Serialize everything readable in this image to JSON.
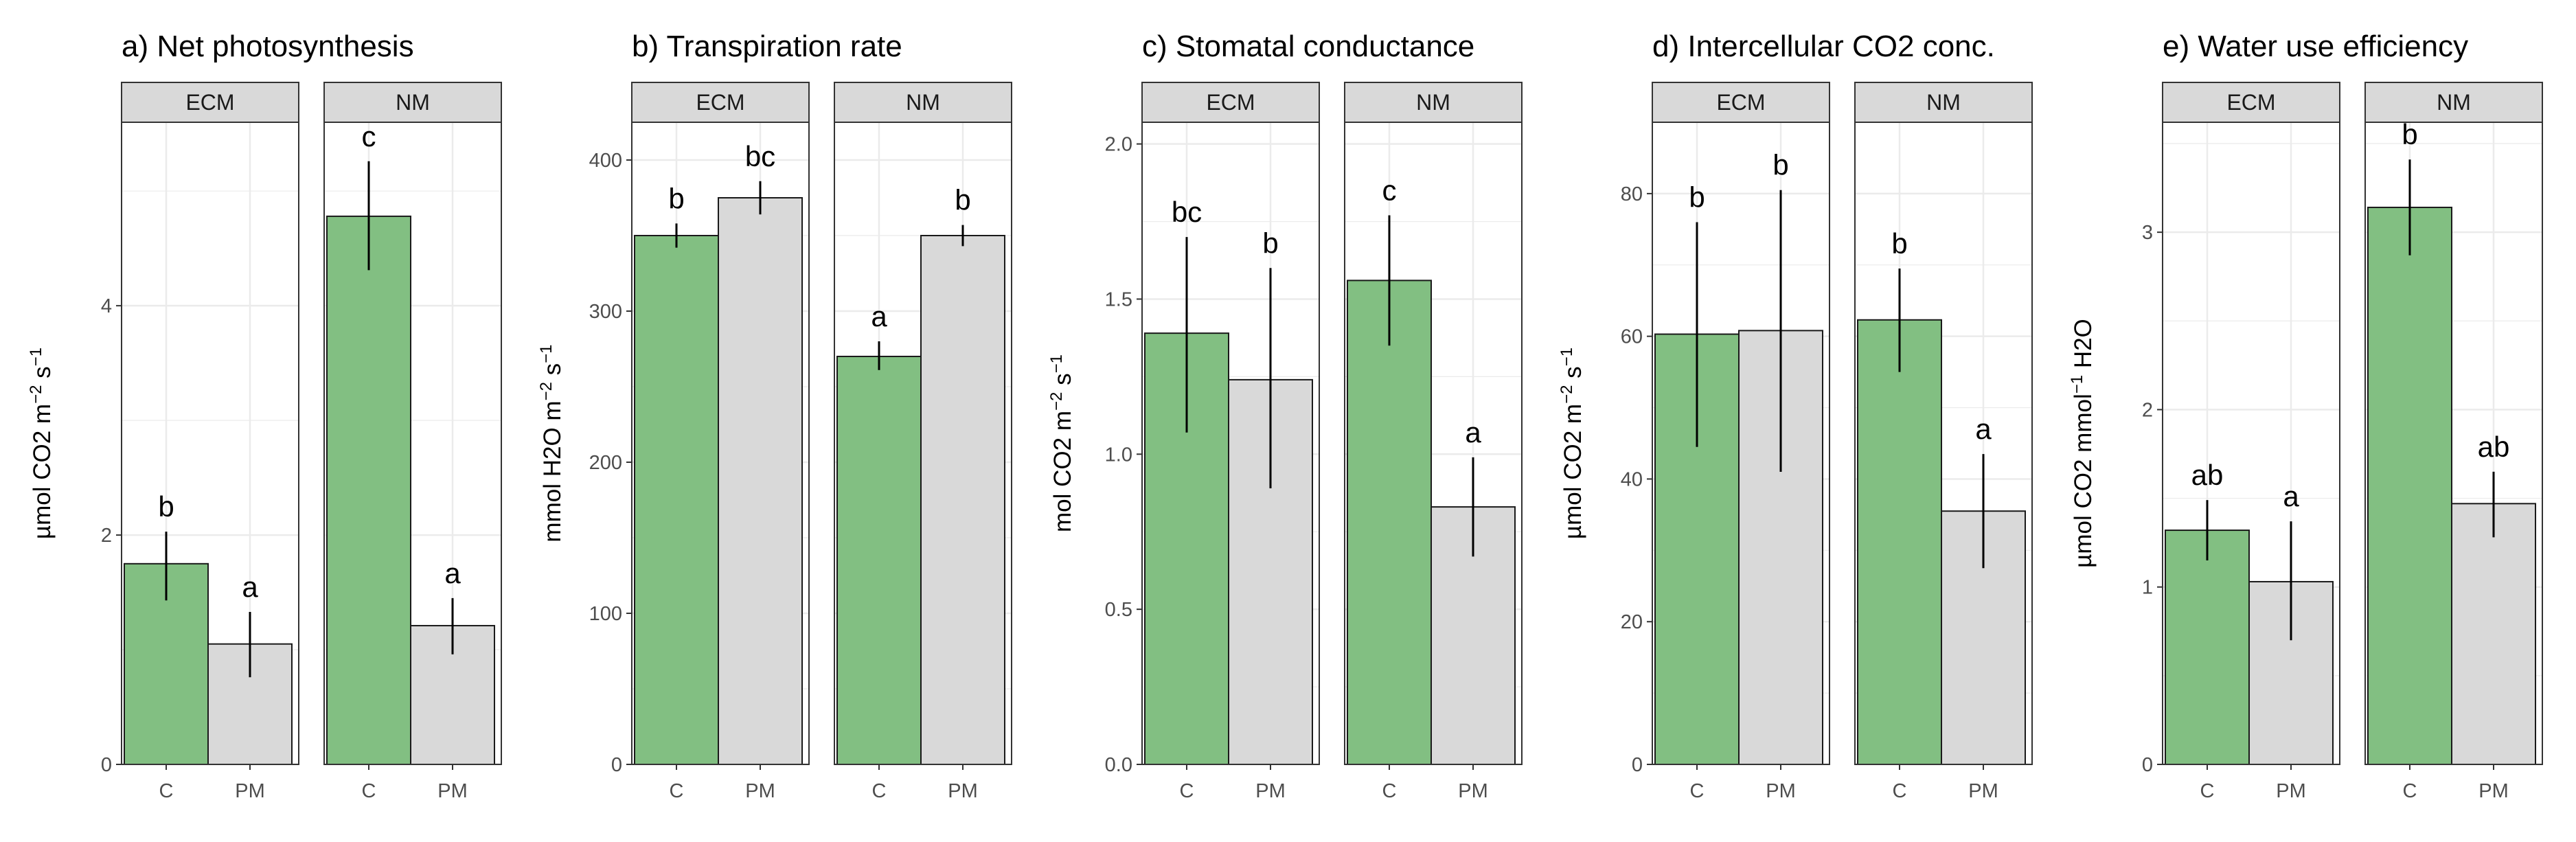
{
  "figure": {
    "facets": [
      "ECM",
      "NM"
    ],
    "treatments": [
      "C",
      "PM"
    ],
    "colors": {
      "C": "#82bf82",
      "PM": "#d9d9d9",
      "bar_outline": "#1a1a1a",
      "strip_fill": "#d9d9d9",
      "grid": "#ebebeb",
      "panel_border": "#333333"
    }
  },
  "chart_data": [
    {
      "type": "bar",
      "title": "a) Net photosynthesis",
      "ylabel": "µmol CO2 m^-2 s^-1",
      "ylabel_parts": [
        [
          "µmol CO2 m",
          false
        ],
        [
          "−2",
          true
        ],
        [
          " s",
          false
        ],
        [
          "−1",
          true
        ]
      ],
      "ylim": [
        0,
        5.6
      ],
      "yticks": [
        0,
        2,
        4
      ],
      "ytick_labels": [
        "0",
        "2",
        "4"
      ],
      "series": [
        {
          "facet": "ECM",
          "treatment": "C",
          "value": 1.75,
          "err_low": 1.43,
          "err_high": 2.03,
          "letter": "b"
        },
        {
          "facet": "ECM",
          "treatment": "PM",
          "value": 1.05,
          "err_low": 0.76,
          "err_high": 1.33,
          "letter": "a"
        },
        {
          "facet": "NM",
          "treatment": "C",
          "value": 4.78,
          "err_low": 4.31,
          "err_high": 5.26,
          "letter": "c"
        },
        {
          "facet": "NM",
          "treatment": "PM",
          "value": 1.21,
          "err_low": 0.96,
          "err_high": 1.45,
          "letter": "a"
        }
      ]
    },
    {
      "type": "bar",
      "title": "b) Transpiration rate",
      "ylabel": "mmol H2O m^-2 s^-1",
      "ylabel_parts": [
        [
          "mmol H2O m",
          false
        ],
        [
          "−2",
          true
        ],
        [
          " s",
          false
        ],
        [
          "−1",
          true
        ]
      ],
      "ylim": [
        0,
        425
      ],
      "yticks": [
        0,
        100,
        200,
        300,
        400
      ],
      "ytick_labels": [
        "0",
        "100",
        "200",
        "300",
        "400"
      ],
      "series": [
        {
          "facet": "ECM",
          "treatment": "C",
          "value": 350,
          "err_low": 342,
          "err_high": 358,
          "letter": "b"
        },
        {
          "facet": "ECM",
          "treatment": "PM",
          "value": 375,
          "err_low": 364,
          "err_high": 386,
          "letter": "bc"
        },
        {
          "facet": "NM",
          "treatment": "C",
          "value": 270,
          "err_low": 261,
          "err_high": 280,
          "letter": "a"
        },
        {
          "facet": "NM",
          "treatment": "PM",
          "value": 350,
          "err_low": 343,
          "err_high": 357,
          "letter": "b"
        }
      ]
    },
    {
      "type": "bar",
      "title": "c) Stomatal conductance",
      "ylabel": "mol CO2 m^-2 s^-1",
      "ylabel_parts": [
        [
          "mol CO2 m",
          false
        ],
        [
          "−2",
          true
        ],
        [
          " s",
          false
        ],
        [
          "−1",
          true
        ]
      ],
      "ylim": [
        0,
        2.07
      ],
      "yticks": [
        0,
        0.5,
        1.0,
        1.5,
        2.0
      ],
      "ytick_labels": [
        "0.0",
        "0.5",
        "1.0",
        "1.5",
        "2.0"
      ],
      "series": [
        {
          "facet": "ECM",
          "treatment": "C",
          "value": 1.39,
          "err_low": 1.07,
          "err_high": 1.7,
          "letter": "bc"
        },
        {
          "facet": "ECM",
          "treatment": "PM",
          "value": 1.24,
          "err_low": 0.89,
          "err_high": 1.6,
          "letter": "b"
        },
        {
          "facet": "NM",
          "treatment": "C",
          "value": 1.56,
          "err_low": 1.35,
          "err_high": 1.77,
          "letter": "c"
        },
        {
          "facet": "NM",
          "treatment": "PM",
          "value": 0.83,
          "err_low": 0.67,
          "err_high": 0.99,
          "letter": "a"
        }
      ]
    },
    {
      "type": "bar",
      "title": "d) Intercellular CO2 conc.",
      "ylabel": "µmol CO2 m^-2 s^-1",
      "ylabel_parts": [
        [
          "µmol CO2 m",
          false
        ],
        [
          "−2",
          true
        ],
        [
          " s",
          false
        ],
        [
          "−1",
          true
        ]
      ],
      "ylim": [
        0,
        90
      ],
      "yticks": [
        0,
        20,
        40,
        60,
        80
      ],
      "ytick_labels": [
        "0",
        "20",
        "40",
        "60",
        "80"
      ],
      "series": [
        {
          "facet": "ECM",
          "treatment": "C",
          "value": 60.3,
          "err_low": 44.5,
          "err_high": 76.0,
          "letter": "b"
        },
        {
          "facet": "ECM",
          "treatment": "PM",
          "value": 60.8,
          "err_low": 41.0,
          "err_high": 80.5,
          "letter": "b"
        },
        {
          "facet": "NM",
          "treatment": "C",
          "value": 62.3,
          "err_low": 55.0,
          "err_high": 69.5,
          "letter": "b"
        },
        {
          "facet": "NM",
          "treatment": "PM",
          "value": 35.5,
          "err_low": 27.5,
          "err_high": 43.5,
          "letter": "a"
        }
      ]
    },
    {
      "type": "bar",
      "title": "e) Water use efficiency",
      "ylabel": "µmol CO2 mmol^-1 H2O",
      "ylabel_parts": [
        [
          "µmol CO2 mmol",
          false
        ],
        [
          "−1",
          true
        ],
        [
          " H2O",
          false
        ]
      ],
      "ylim": [
        0,
        3.62
      ],
      "yticks": [
        0,
        1,
        2,
        3
      ],
      "ytick_labels": [
        "0",
        "1",
        "2",
        "3"
      ],
      "series": [
        {
          "facet": "ECM",
          "treatment": "C",
          "value": 1.32,
          "err_low": 1.15,
          "err_high": 1.49,
          "letter": "ab"
        },
        {
          "facet": "ECM",
          "treatment": "PM",
          "value": 1.03,
          "err_low": 0.7,
          "err_high": 1.37,
          "letter": "a"
        },
        {
          "facet": "NM",
          "treatment": "C",
          "value": 3.14,
          "err_low": 2.87,
          "err_high": 3.41,
          "letter": "b"
        },
        {
          "facet": "NM",
          "treatment": "PM",
          "value": 1.47,
          "err_low": 1.28,
          "err_high": 1.65,
          "letter": "ab"
        }
      ]
    }
  ]
}
